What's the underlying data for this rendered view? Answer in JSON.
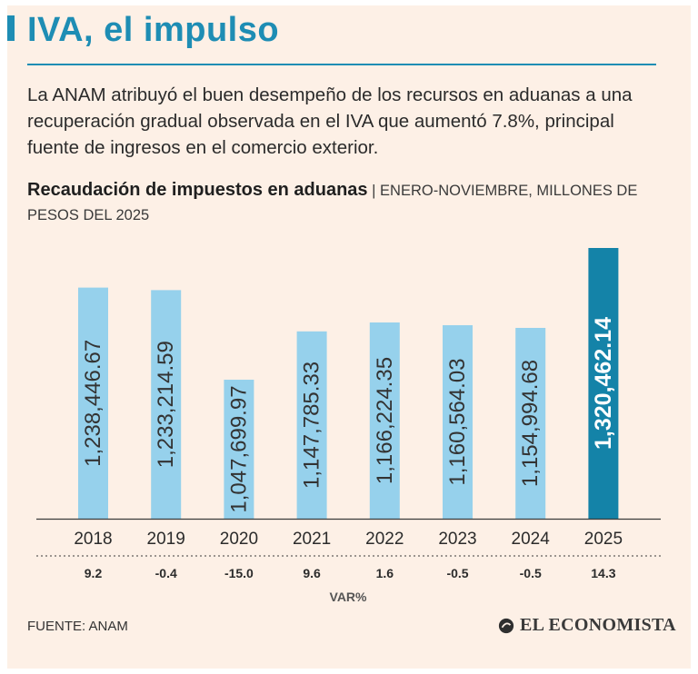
{
  "header": {
    "title": "IVA, el impulso",
    "intro": "La ANAM atribuyó el buen desempeño de los recursos en aduanas a una recuperación gradual observada en el IVA que aumentó 7.8%, principal fuente de ingresos en el comercio exterior."
  },
  "subtitle": {
    "main": "Recaudación de impuestos en aduanas",
    "separator": " | ",
    "detail": "ENERO-NOVIEMBRE, MILLONES DE PESOS DEL 2025"
  },
  "colors": {
    "accent": "#1e8db4",
    "bar": "#96d1ec",
    "bar_highlight": "#1483a8",
    "background": "#fdf0e6",
    "text_dark": "#2b2b2b"
  },
  "chart_data": {
    "type": "bar",
    "title": "Recaudación de impuestos en aduanas",
    "ylabel": "Millones de pesos del 2025",
    "xlabel": "",
    "categories": [
      "2018",
      "2019",
      "2020",
      "2021",
      "2022",
      "2023",
      "2024",
      "2025"
    ],
    "values": [
      1238446.67,
      1233214.59,
      1047699.97,
      1147785.33,
      1166224.35,
      1160564.03,
      1154994.68,
      1320462.14
    ],
    "value_labels": [
      "1,238,446.67",
      "1,233,214.59",
      "1,047,699.97",
      "1,147,785.33",
      "1,166,224.35",
      "1,160,564.03",
      "1,154,994.68",
      "1,320,462.14"
    ],
    "highlight_index": 7,
    "var_pct": [
      9.2,
      -0.4,
      -15.0,
      9.6,
      1.6,
      -0.5,
      -0.5,
      14.3
    ],
    "var_labels": [
      "9.2",
      "-0.4",
      "-15.0",
      "9.6",
      "1.6",
      "-0.5",
      "-0.5",
      "14.3"
    ],
    "var_caption": "VAR%",
    "ylim": [
      0,
      1320462.14
    ],
    "grid": false
  },
  "footer": {
    "source": "FUENTE: ANAM",
    "brand": "EL ECONOMISTA"
  }
}
